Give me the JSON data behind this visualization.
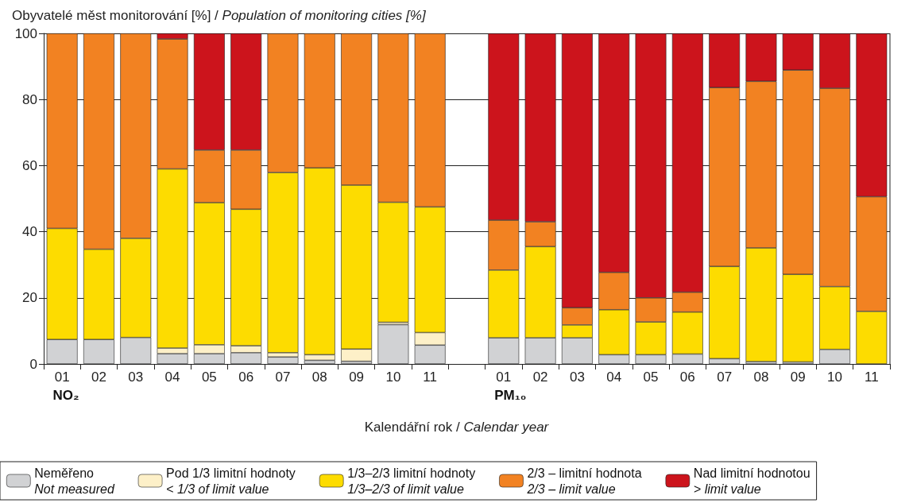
{
  "chart_data": {
    "type": "bar",
    "stacked": true,
    "ylabel": "Obyvatelé měst monitorování [%] / Population of monitoring cities [%]",
    "xlabel": "Kalendářní rok / Calendar year",
    "annotations": [
      "NO₂",
      "PM₁₀"
    ],
    "categories": [
      "01",
      "02",
      "03",
      "04",
      "05",
      "06",
      "07",
      "08",
      "09",
      "10",
      "11",
      null,
      "01",
      "02",
      "03",
      "04",
      "05",
      "06",
      "07",
      "08",
      "09",
      "10",
      "11"
    ],
    "series": [
      {
        "name": "Neměřeno\nNot measured",
        "color": "#d1d2d4",
        "values": [
          7.4,
          7.4,
          8,
          3.1,
          3.1,
          3.4,
          2.1,
          1.1,
          0.8,
          11.9,
          5.7,
          null,
          7.9,
          7.9,
          7.9,
          2.8,
          2.8,
          3.0,
          1.6,
          0.7,
          0.6,
          4.4,
          0
        ]
      },
      {
        "name": "Pod 1/3 limitní hodnoty\n< 1/3 of limit value",
        "color": "#fdf0c8",
        "values": [
          0,
          0,
          0,
          1.7,
          2.7,
          2.1,
          1.3,
          1.7,
          3.7,
          0.7,
          3.8,
          null,
          0,
          0,
          0,
          0,
          0,
          0,
          0,
          0,
          0,
          0,
          0
        ]
      },
      {
        "name": "1/3–2/3 limitní hodnoty\n1/3–2/3 of limit value",
        "color": "#fddc00",
        "values": [
          33.6,
          27.3,
          30,
          54.2,
          43,
          41.3,
          54.5,
          56.5,
          49.6,
          36.3,
          38,
          null,
          20.5,
          27.6,
          3.9,
          13.6,
          9.9,
          12.7,
          27.9,
          34.4,
          26.5,
          19,
          15.9
        ]
      },
      {
        "name": "2/3 – limitní hodnota\n2/3 – limit value",
        "color": "#f28222",
        "values": [
          59,
          65.3,
          62,
          39.3,
          15.9,
          17.9,
          42.1,
          40.7,
          45.9,
          51.1,
          52.5,
          null,
          15.1,
          7.5,
          5.2,
          11.3,
          7.3,
          6,
          54.1,
          50.4,
          61.8,
          60,
          34.7
        ]
      },
      {
        "name": "Nad limitní hodnotou\n> limit value",
        "color": "#cc141c",
        "values": [
          0,
          0,
          0,
          1.7,
          35.3,
          35.3,
          0,
          0,
          0,
          0,
          0,
          null,
          56.5,
          57,
          83,
          72.3,
          80,
          78.3,
          16.4,
          14.5,
          11.1,
          16.6,
          49.4
        ]
      }
    ],
    "ylim": [
      0,
      100
    ],
    "yticks": [
      0,
      20,
      40,
      60,
      80,
      100
    ],
    "grid": "y",
    "legend": "bottom"
  }
}
